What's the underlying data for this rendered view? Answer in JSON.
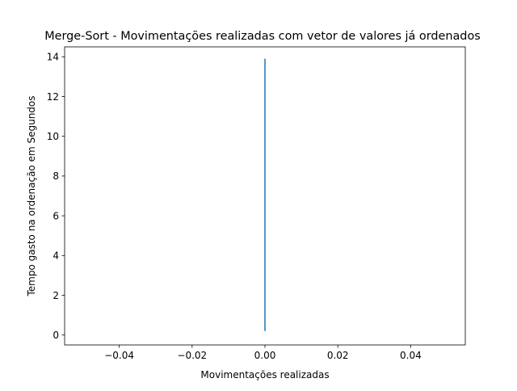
{
  "chart_data": {
    "type": "line",
    "title": "Merge-Sort - Movimentações realizadas com vetor de valores já ordenados",
    "xlabel": "Movimentações realizadas",
    "ylabel": "Tempo gasto na ordenação  em Segundos",
    "xlim": [
      -0.055,
      0.055
    ],
    "ylim": [
      -0.5,
      14.5
    ],
    "x_ticks": [
      -0.04,
      -0.02,
      0.0,
      0.02,
      0.04
    ],
    "x_tick_labels": [
      "−0.04",
      "−0.02",
      "0.00",
      "0.02",
      "0.04"
    ],
    "y_ticks": [
      0,
      2,
      4,
      6,
      8,
      10,
      12,
      14
    ],
    "y_tick_labels": [
      "0",
      "2",
      "4",
      "6",
      "8",
      "10",
      "12",
      "14"
    ],
    "grid": false,
    "legend": "none",
    "series": [
      {
        "color": "#1f77b4",
        "x": [
          0,
          0
        ],
        "y": [
          0.2,
          13.9
        ]
      }
    ]
  }
}
